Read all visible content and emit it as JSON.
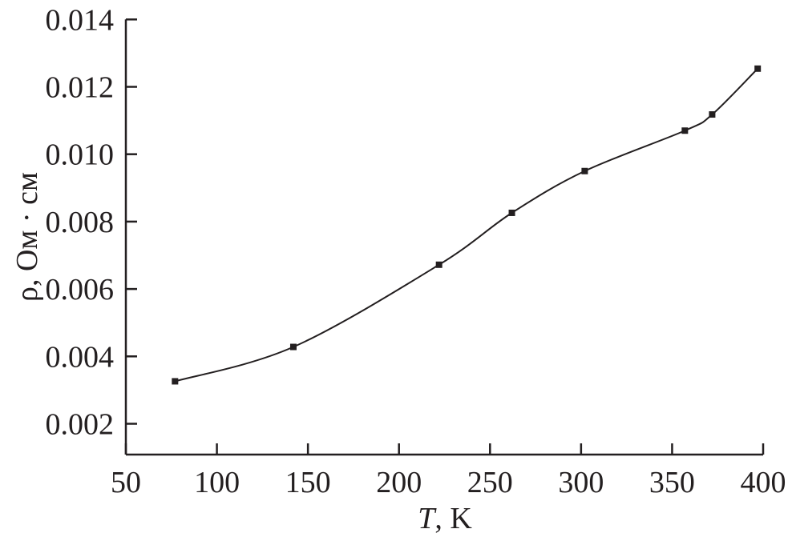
{
  "chart_data": {
    "type": "line",
    "title": "",
    "xlabel_italic": "T",
    "xlabel_rest": ", K",
    "ylabel": "ρ, Ом · см",
    "xlim": [
      50,
      400
    ],
    "ylim": [
      0.001,
      0.014
    ],
    "xticks": [
      "50",
      "100",
      "150",
      "200",
      "250",
      "300",
      "350",
      "400"
    ],
    "yticks": [
      "0.002",
      "0.004",
      "0.006",
      "0.008",
      "0.010",
      "0.012",
      "0.014"
    ],
    "grid": false,
    "series": [
      {
        "marker": "square",
        "line": "smooth",
        "color": "#231f20",
        "x": [
          77,
          142,
          222,
          262,
          302,
          357,
          372,
          397
        ],
        "y": [
          0.00326,
          0.00428,
          0.00672,
          0.00826,
          0.0095,
          0.0107,
          0.01118,
          0.01254
        ]
      }
    ]
  }
}
